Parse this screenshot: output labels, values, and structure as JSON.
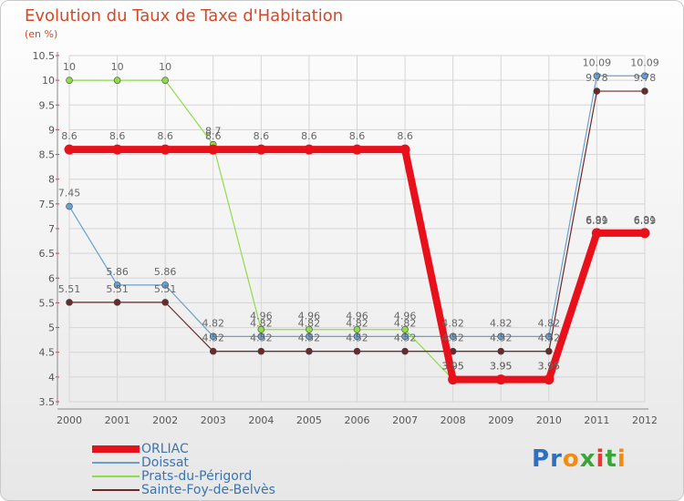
{
  "title": "Evolution du Taux de Taxe d'Habitation",
  "unit_label": "(en %)",
  "logo": {
    "text": "Proxiti",
    "colors": [
      "#2e6fbf",
      "#2e6fbf",
      "#f28c0f",
      "#3aa63a",
      "#e53935",
      "#3aa63a",
      "#f28c0f"
    ]
  },
  "chart_data": {
    "type": "line",
    "title": "Evolution du Taux de Taxe d'Habitation",
    "ylabel": "(en %)",
    "x": [
      "2000",
      "2001",
      "2002",
      "2003",
      "2004",
      "2005",
      "2006",
      "2007",
      "2008",
      "2009",
      "2010",
      "2011",
      "2012"
    ],
    "ylim": [
      3.5,
      10.5
    ],
    "yticks": [
      "3.5",
      "4",
      "4.5",
      "5",
      "5.5",
      "6",
      "6.5",
      "7",
      "7.5",
      "8",
      "8.5",
      "9",
      "9.5",
      "10",
      "10.5"
    ],
    "grid": true,
    "legend_position": "bottom-left",
    "series": [
      {
        "name": "ORLIAC",
        "color": "#e8101a",
        "values": [
          8.6,
          8.6,
          8.6,
          8.6,
          8.6,
          8.6,
          8.6,
          8.6,
          3.95,
          3.95,
          3.95,
          6.91,
          6.91
        ],
        "labels": [
          "8.6",
          "8.6",
          "8.6",
          "8.6",
          "8.6",
          "8.6",
          "8.6",
          "8.6",
          "3.95",
          "3.95",
          "3.95",
          "6.91",
          "6.91"
        ]
      },
      {
        "name": "Doissat",
        "color": "#6aa0cf",
        "values": [
          7.45,
          5.86,
          5.86,
          4.82,
          4.82,
          4.82,
          4.82,
          4.82,
          4.82,
          4.82,
          4.82,
          10.09,
          10.09
        ],
        "labels": [
          "7.45",
          "5.86",
          "5.86",
          "4.82",
          "4.82",
          "4.82",
          "4.82",
          "4.82",
          "4.82",
          "4.82",
          "4.82",
          "10.09",
          "10.09"
        ]
      },
      {
        "name": "Prats-du-Périgord",
        "color": "#8fdc4a",
        "values": [
          10,
          10,
          10,
          8.7,
          4.96,
          4.96,
          4.96,
          4.96,
          3.95,
          3.95,
          3.95,
          6.89,
          6.89
        ],
        "labels": [
          "10",
          "10",
          "10",
          "8.7",
          "4.96",
          "4.96",
          "4.96",
          "4.96",
          "3.95",
          "3.95",
          "3.95",
          "6.89",
          "6.89"
        ]
      },
      {
        "name": "Sainte-Foy-de-Belvès",
        "color": "#6b2a2a",
        "values": [
          5.51,
          5.51,
          5.51,
          4.52,
          4.52,
          4.52,
          4.52,
          4.52,
          4.52,
          4.52,
          4.52,
          9.78,
          9.78
        ],
        "labels": [
          "5.51",
          "5.51",
          "5.51",
          "4.52",
          "4.52",
          "4.52",
          "4.52",
          "4.52",
          "4.52",
          "4.52",
          "4.52",
          "9.78",
          "9.78"
        ]
      }
    ]
  }
}
